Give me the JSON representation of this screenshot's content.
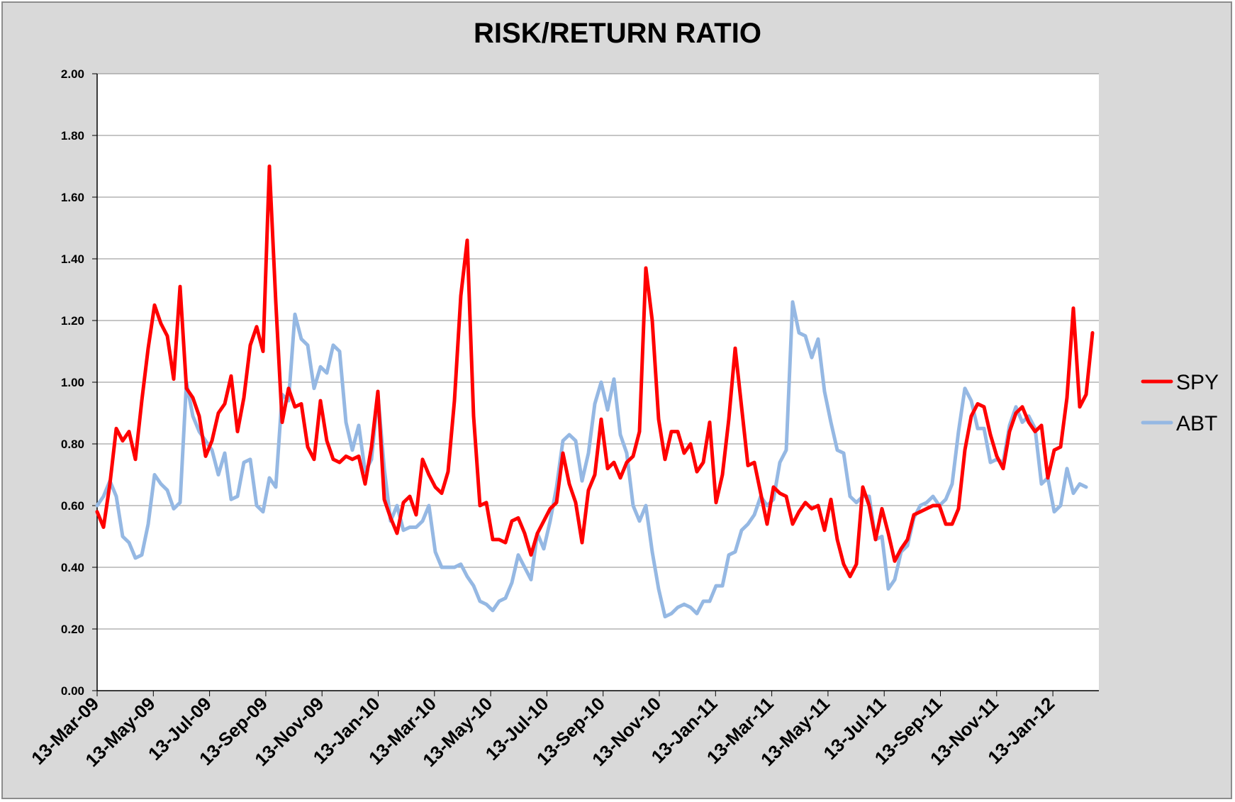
{
  "chart_data": {
    "type": "line",
    "title": "RISK/RETURN RATIO",
    "xlabel": "",
    "ylabel": "",
    "ylim": [
      0,
      2
    ],
    "yticks": [
      "0.00",
      "0.20",
      "0.40",
      "0.60",
      "0.80",
      "1.00",
      "1.20",
      "1.40",
      "1.60",
      "1.80",
      "2.00"
    ],
    "xticks": [
      "13-Mar-09",
      "13-May-09",
      "13-Jul-09",
      "13-Sep-09",
      "13-Nov-09",
      "13-Jan-10",
      "13-Mar-10",
      "13-May-10",
      "13-Jul-10",
      "13-Sep-10",
      "13-Nov-10",
      "13-Jan-11",
      "13-Mar-11",
      "13-May-11",
      "13-Jul-11",
      "13-Sep-11",
      "13-Nov-11",
      "13-Jan-12"
    ],
    "grid": true,
    "legend_position": "right",
    "series": [
      {
        "name": "SPY",
        "color": "#ff0000",
        "values": [
          0.58,
          0.53,
          0.67,
          0.85,
          0.81,
          0.84,
          0.75,
          0.94,
          1.11,
          1.25,
          1.19,
          1.15,
          1.01,
          1.31,
          0.98,
          0.95,
          0.89,
          0.76,
          0.81,
          0.9,
          0.93,
          1.02,
          0.84,
          0.95,
          1.12,
          1.18,
          1.1,
          1.7,
          1.26,
          0.87,
          0.98,
          0.92,
          0.93,
          0.79,
          0.75,
          0.94,
          0.81,
          0.75,
          0.74,
          0.76,
          0.75,
          0.76,
          0.67,
          0.79,
          0.97,
          0.62,
          0.56,
          0.51,
          0.61,
          0.63,
          0.57,
          0.75,
          0.7,
          0.66,
          0.64,
          0.71,
          0.94,
          1.28,
          1.46,
          0.89,
          0.6,
          0.61,
          0.49,
          0.49,
          0.48,
          0.55,
          0.56,
          0.51,
          0.44,
          0.51,
          0.55,
          0.59,
          0.61,
          0.77,
          0.67,
          0.61,
          0.48,
          0.65,
          0.7,
          0.88,
          0.72,
          0.74,
          0.69,
          0.74,
          0.76,
          0.84,
          1.37,
          1.2,
          0.88,
          0.75,
          0.84,
          0.84,
          0.77,
          0.8,
          0.71,
          0.74,
          0.87,
          0.61,
          0.7,
          0.88,
          1.11,
          0.92,
          0.73,
          0.74,
          0.64,
          0.54,
          0.66,
          0.64,
          0.63,
          0.54,
          0.58,
          0.61,
          0.59,
          0.6,
          0.52,
          0.62,
          0.49,
          0.41,
          0.37,
          0.41,
          0.66,
          0.6,
          0.49,
          0.59,
          0.51,
          0.42,
          0.46,
          0.49,
          0.57,
          0.58,
          0.59,
          0.6,
          0.6,
          0.54,
          0.54,
          0.59,
          0.78,
          0.89,
          0.93,
          0.92,
          0.83,
          0.76,
          0.72,
          0.84,
          0.9,
          0.92,
          0.87,
          0.84,
          0.86,
          0.69,
          0.78,
          0.79,
          0.95,
          1.24,
          0.92,
          0.96,
          1.16
        ]
      },
      {
        "name": "ABT",
        "color": "#95b8e3",
        "values": [
          0.6,
          0.63,
          0.68,
          0.63,
          0.5,
          0.48,
          0.43,
          0.44,
          0.54,
          0.7,
          0.67,
          0.65,
          0.59,
          0.61,
          1.0,
          0.89,
          0.84,
          0.81,
          0.78,
          0.7,
          0.77,
          0.62,
          0.63,
          0.74,
          0.75,
          0.6,
          0.58,
          0.69,
          0.66,
          0.96,
          0.94,
          1.22,
          1.14,
          1.12,
          0.98,
          1.05,
          1.03,
          1.12,
          1.1,
          0.87,
          0.78,
          0.86,
          0.71,
          0.75,
          0.96,
          0.72,
          0.55,
          0.6,
          0.52,
          0.53,
          0.53,
          0.55,
          0.6,
          0.45,
          0.4,
          0.4,
          0.4,
          0.41,
          0.37,
          0.34,
          0.29,
          0.28,
          0.26,
          0.29,
          0.3,
          0.35,
          0.44,
          0.4,
          0.36,
          0.51,
          0.46,
          0.55,
          0.66,
          0.81,
          0.83,
          0.81,
          0.68,
          0.77,
          0.93,
          1.0,
          0.91,
          1.01,
          0.83,
          0.77,
          0.6,
          0.55,
          0.6,
          0.45,
          0.33,
          0.24,
          0.25,
          0.27,
          0.28,
          0.27,
          0.25,
          0.29,
          0.29,
          0.34,
          0.34,
          0.44,
          0.45,
          0.52,
          0.54,
          0.57,
          0.63,
          0.6,
          0.62,
          0.74,
          0.78,
          1.26,
          1.16,
          1.15,
          1.08,
          1.14,
          0.97,
          0.87,
          0.78,
          0.77,
          0.63,
          0.61,
          0.63,
          0.63,
          0.49,
          0.5,
          0.33,
          0.36,
          0.45,
          0.47,
          0.56,
          0.6,
          0.61,
          0.63,
          0.6,
          0.62,
          0.67,
          0.84,
          0.98,
          0.94,
          0.85,
          0.85,
          0.74,
          0.75,
          0.74,
          0.86,
          0.92,
          0.87,
          0.89,
          0.85,
          0.67,
          0.69,
          0.58,
          0.6,
          0.72,
          0.64,
          0.67,
          0.66
        ]
      }
    ]
  }
}
